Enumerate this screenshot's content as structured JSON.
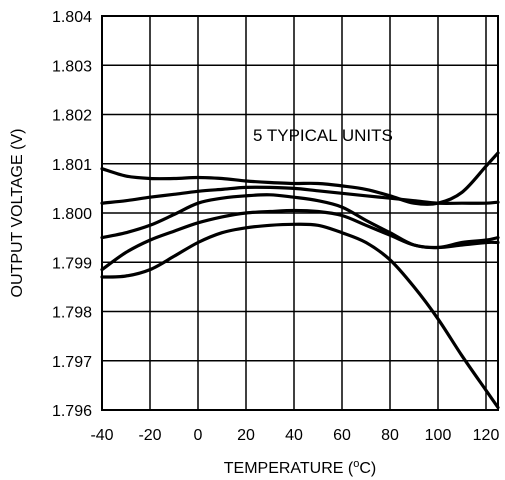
{
  "chart_data": {
    "type": "line",
    "title": "",
    "annotation": "5 TYPICAL UNITS",
    "xlabel": "TEMPERATURE (",
    "xlabel_sup": "o",
    "xlabel_unit": "C)",
    "ylabel": "OUTPUT VOLTAGE (V)",
    "xlim": [
      -40,
      125
    ],
    "ylim": [
      1.796,
      1.804
    ],
    "grid": true,
    "xticks": [
      -40,
      -20,
      0,
      20,
      40,
      60,
      80,
      100,
      120
    ],
    "xtick_labels": [
      "-40",
      "-20",
      "0",
      "20",
      "40",
      "60",
      "80",
      "100",
      "120"
    ],
    "yticks": [
      1.796,
      1.797,
      1.798,
      1.799,
      1.8,
      1.801,
      1.802,
      1.803,
      1.804
    ],
    "ytick_labels": [
      "1.796",
      "1.797",
      "1.798",
      "1.799",
      "1.800",
      "1.801",
      "1.802",
      "1.803",
      "1.804"
    ],
    "series": [
      {
        "x": [
          -40,
          -30,
          -20,
          -10,
          0,
          10,
          20,
          30,
          40,
          50,
          60,
          70,
          80,
          90,
          100,
          110,
          120,
          125
        ],
        "y": [
          1.8009,
          1.80075,
          1.8007,
          1.8007,
          1.80072,
          1.8007,
          1.80065,
          1.80062,
          1.8006,
          1.8006,
          1.80055,
          1.80048,
          1.80035,
          1.8002,
          1.8002,
          1.80042,
          1.80095,
          1.80122
        ]
      },
      {
        "x": [
          -40,
          -30,
          -20,
          -10,
          0,
          10,
          20,
          30,
          40,
          50,
          60,
          70,
          80,
          90,
          100,
          110,
          120,
          125
        ],
        "y": [
          1.8002,
          1.80025,
          1.80032,
          1.80038,
          1.80044,
          1.80048,
          1.80052,
          1.80052,
          1.8005,
          1.80045,
          1.8004,
          1.80035,
          1.8003,
          1.80025,
          1.8002,
          1.8002,
          1.8002,
          1.80022
        ]
      },
      {
        "x": [
          -40,
          -30,
          -20,
          -10,
          0,
          10,
          20,
          30,
          40,
          50,
          60,
          70,
          80,
          90,
          100,
          110,
          120,
          125
        ],
        "y": [
          1.7995,
          1.7996,
          1.79975,
          1.79997,
          1.8002,
          1.8003,
          1.80035,
          1.80037,
          1.80032,
          1.80025,
          1.80012,
          1.79985,
          1.7996,
          1.79935,
          1.7993,
          1.79935,
          1.7994,
          1.7994
        ]
      },
      {
        "x": [
          -40,
          -30,
          -20,
          -10,
          0,
          10,
          20,
          30,
          40,
          50,
          60,
          70,
          80,
          90,
          100,
          110,
          120,
          125
        ],
        "y": [
          1.79885,
          1.7992,
          1.79945,
          1.79963,
          1.7998,
          1.79992,
          1.8,
          1.80003,
          1.80005,
          1.80003,
          1.79995,
          1.79975,
          1.79955,
          1.79935,
          1.7993,
          1.7994,
          1.79945,
          1.7995
        ]
      },
      {
        "x": [
          -40,
          -30,
          -20,
          -10,
          0,
          10,
          20,
          30,
          40,
          50,
          60,
          70,
          80,
          90,
          100,
          110,
          120,
          125
        ],
        "y": [
          1.7987,
          1.79872,
          1.79885,
          1.79912,
          1.7994,
          1.7996,
          1.7997,
          1.79975,
          1.79977,
          1.79975,
          1.7996,
          1.7994,
          1.79905,
          1.7985,
          1.79785,
          1.7971,
          1.7964,
          1.79605
        ]
      }
    ]
  }
}
